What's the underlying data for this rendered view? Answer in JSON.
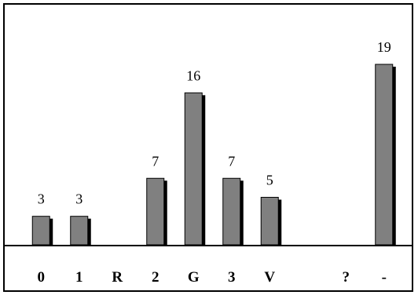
{
  "chart_data": {
    "type": "bar",
    "title": "",
    "xlabel": "",
    "ylabel": "",
    "categories": [
      "0",
      "1",
      "R",
      "2",
      "G",
      "3",
      "V",
      "",
      "?",
      "-"
    ],
    "values": [
      3,
      3,
      null,
      7,
      16,
      7,
      5,
      null,
      null,
      19
    ],
    "data_labels": [
      "3",
      "3",
      "",
      "7",
      "16",
      "7",
      "5",
      "",
      "",
      "19"
    ],
    "ylim": [
      0,
      19
    ],
    "grid": false,
    "legend": "none",
    "colors": {
      "bar": "#808080",
      "shadow": "#000000",
      "axis": "#000000",
      "frame": "#000000"
    }
  }
}
